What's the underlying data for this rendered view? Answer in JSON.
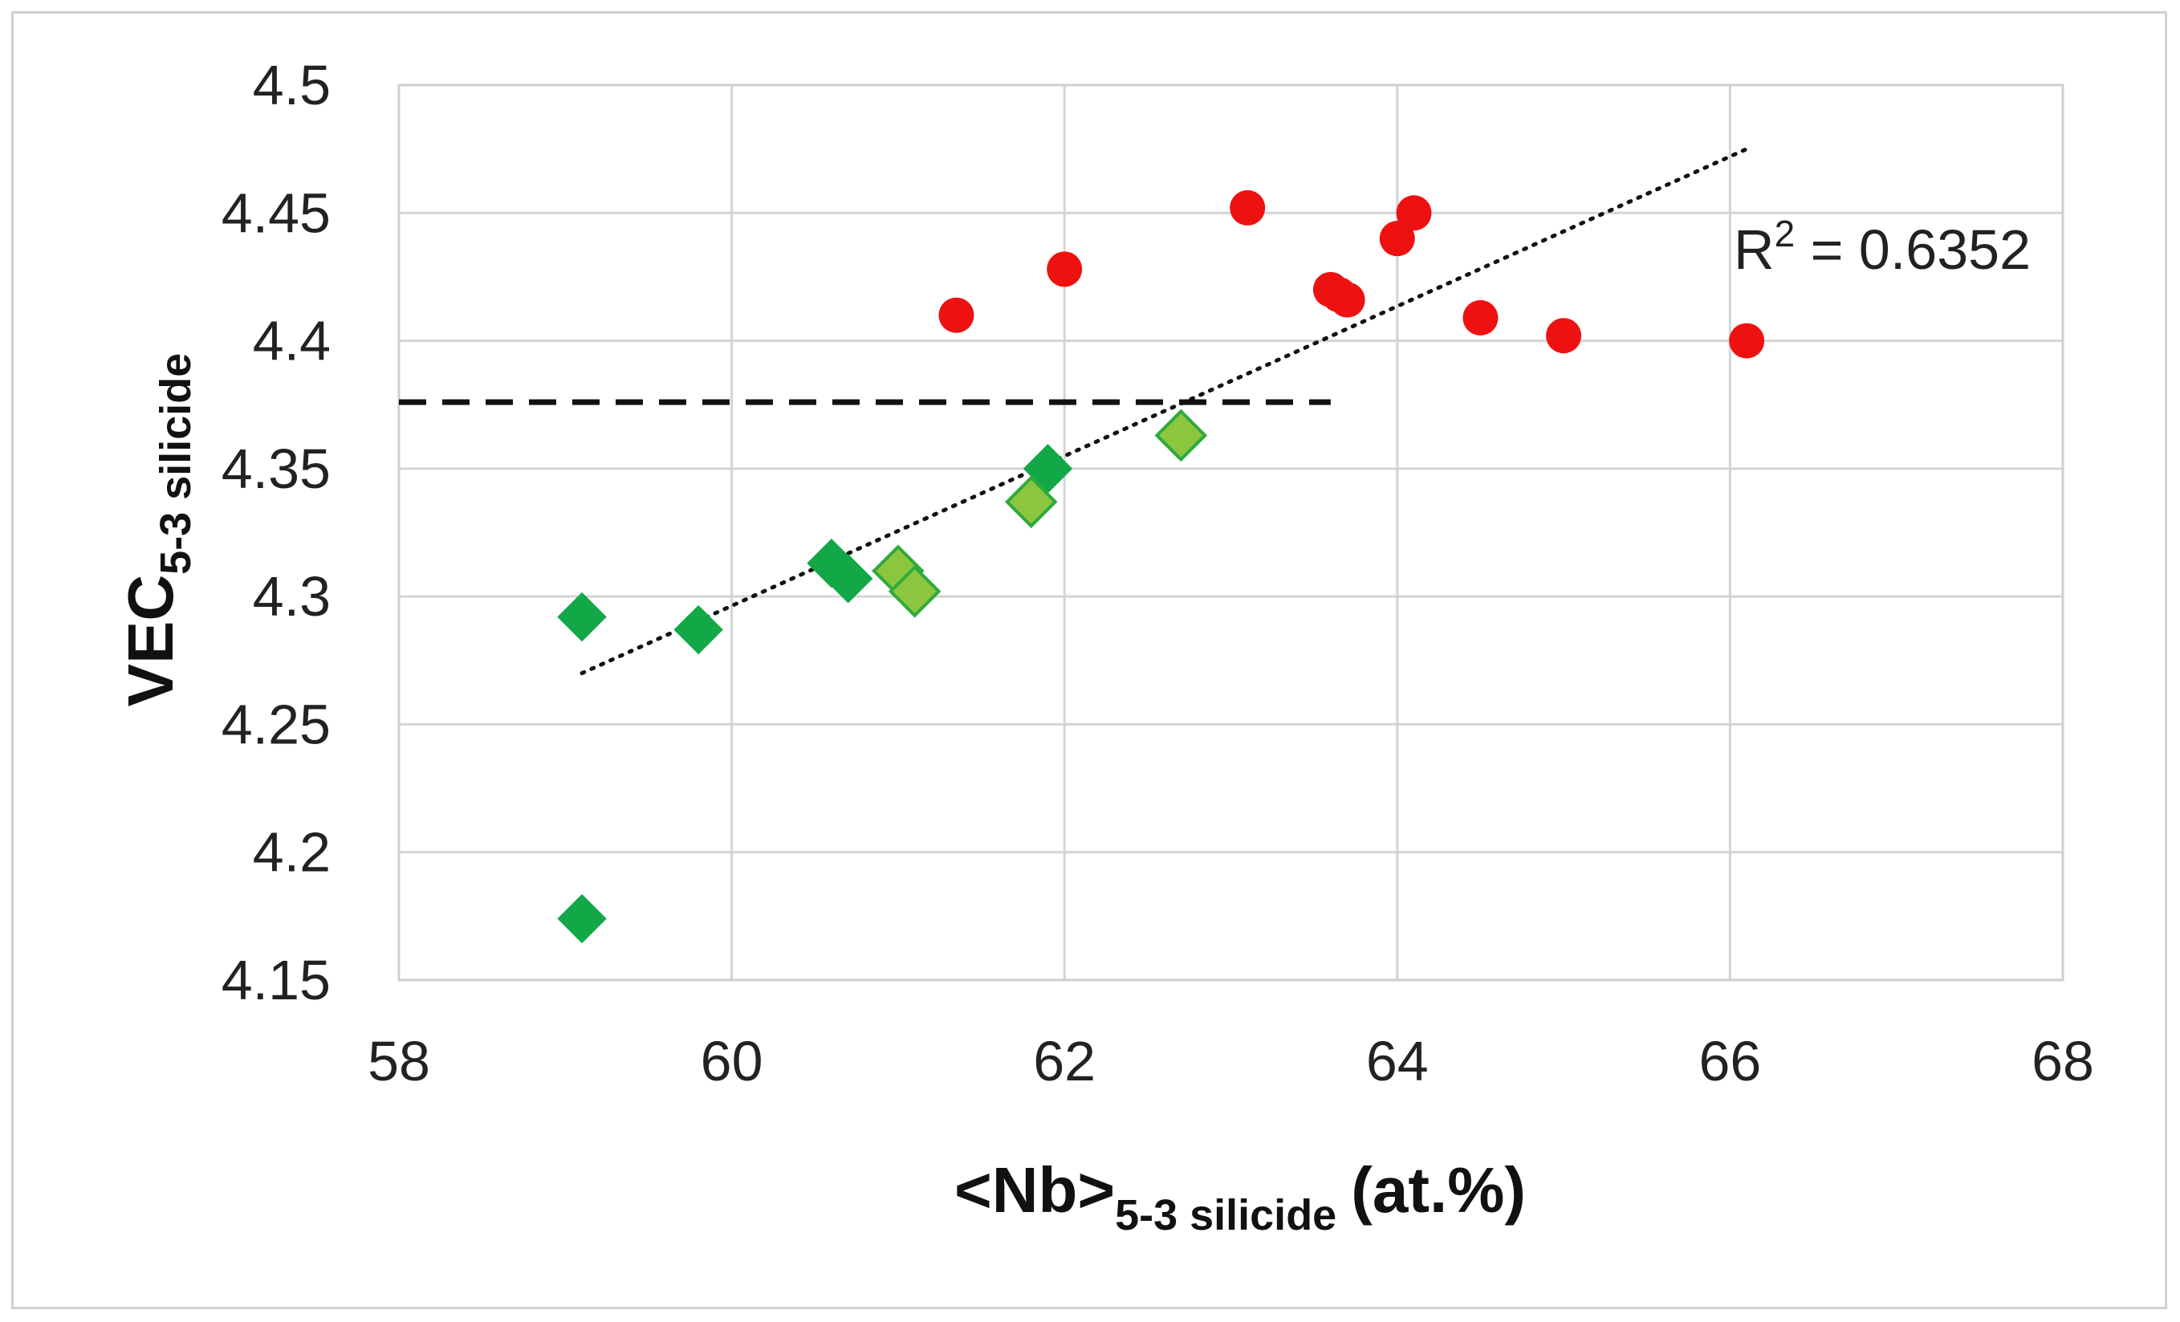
{
  "chart_data": {
    "type": "scatter",
    "title": "",
    "xlabel": {
      "main": "<Nb>",
      "subscript": "5-3 silicide",
      "suffix": "(at.%)"
    },
    "ylabel": {
      "main": "VEC",
      "subscript": "5-3 silicide"
    },
    "xlim": [
      58,
      68
    ],
    "ylim": [
      4.15,
      4.5
    ],
    "x_ticks": [
      58,
      60,
      62,
      64,
      66,
      68
    ],
    "y_ticks": [
      4.15,
      4.2,
      4.25,
      4.3,
      4.35,
      4.4,
      4.45,
      4.5
    ],
    "x_tick_labels": [
      "58",
      "60",
      "62",
      "64",
      "66",
      "68"
    ],
    "y_tick_labels": [
      "4.15",
      "4.2",
      "4.25",
      "4.3",
      "4.35",
      "4.4",
      "4.45",
      "4.5"
    ],
    "grid": true,
    "series": [
      {
        "name": "red-circles",
        "marker": "circle",
        "color": "#ee1111",
        "points": [
          {
            "x": 61.35,
            "y": 4.41
          },
          {
            "x": 62.0,
            "y": 4.428
          },
          {
            "x": 63.1,
            "y": 4.452
          },
          {
            "x": 63.6,
            "y": 4.42
          },
          {
            "x": 63.65,
            "y": 4.418
          },
          {
            "x": 63.7,
            "y": 4.416
          },
          {
            "x": 64.0,
            "y": 4.44
          },
          {
            "x": 64.1,
            "y": 4.45
          },
          {
            "x": 64.5,
            "y": 4.409
          },
          {
            "x": 65.0,
            "y": 4.402
          },
          {
            "x": 66.1,
            "y": 4.4
          }
        ]
      },
      {
        "name": "dark-green-diamonds",
        "marker": "diamond",
        "color": "#12a847",
        "points": [
          {
            "x": 59.1,
            "y": 4.292
          },
          {
            "x": 59.1,
            "y": 4.174
          },
          {
            "x": 59.8,
            "y": 4.287
          },
          {
            "x": 60.6,
            "y": 4.313
          },
          {
            "x": 60.7,
            "y": 4.307
          },
          {
            "x": 61.9,
            "y": 4.35
          }
        ]
      },
      {
        "name": "light-green-diamonds",
        "marker": "diamond",
        "color": "#8cc63f",
        "stroke": "#2eaa3c",
        "points": [
          {
            "x": 61.0,
            "y": 4.31
          },
          {
            "x": 61.1,
            "y": 4.302
          },
          {
            "x": 61.8,
            "y": 4.337
          },
          {
            "x": 62.7,
            "y": 4.363
          }
        ]
      }
    ],
    "trendline": {
      "style": "dotted",
      "color": "#111111",
      "from": {
        "x": 59.1,
        "y": 4.27
      },
      "to": {
        "x": 66.1,
        "y": 4.475
      }
    },
    "reference_line": {
      "style": "dashed",
      "color": "#111111",
      "y": 4.376,
      "x_from": 58,
      "x_to": 63.6
    },
    "annotations": [
      {
        "text_main": "R",
        "superscript": "2",
        "text_rest": " = 0.6352",
        "x": 66.0,
        "y": 4.43
      }
    ]
  }
}
